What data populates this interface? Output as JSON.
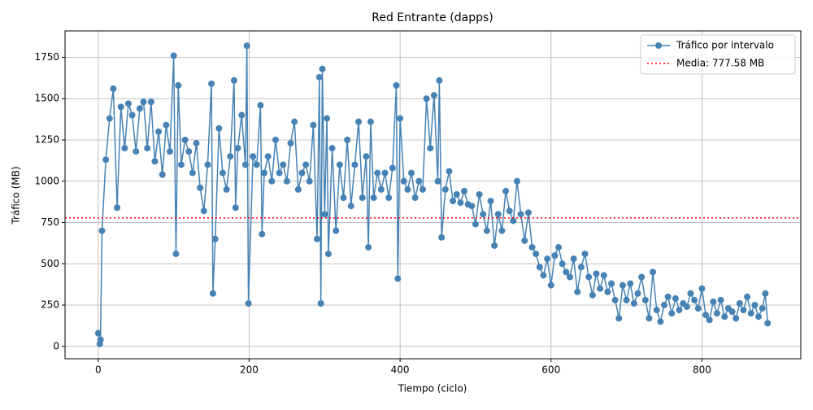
{
  "chart_data": {
    "type": "line",
    "title": "Red Entrante (dapps)",
    "x_label": "Tiempo (ciclo)",
    "y_label": "Tráfico (MB)",
    "xlim": [
      -44,
      931
    ],
    "ylim": [
      -75,
      1910
    ],
    "xticks": [
      0,
      200,
      400,
      600,
      800
    ],
    "yticks": [
      0,
      250,
      500,
      750,
      1000,
      1250,
      1500,
      1750
    ],
    "grid": true,
    "legend": "upper right",
    "x": [
      0,
      2,
      3,
      5,
      10,
      15,
      20,
      25,
      30,
      35,
      40,
      45,
      50,
      55,
      60,
      65,
      70,
      75,
      80,
      85,
      90,
      95,
      100,
      103,
      106,
      110,
      115,
      120,
      125,
      130,
      135,
      140,
      145,
      150,
      152,
      155,
      160,
      165,
      170,
      175,
      180,
      182,
      185,
      190,
      195,
      197,
      199,
      205,
      210,
      215,
      217,
      220,
      225,
      230,
      235,
      240,
      245,
      250,
      255,
      260,
      265,
      270,
      275,
      280,
      285,
      290,
      293,
      295,
      297,
      300,
      303,
      305,
      310,
      315,
      320,
      325,
      330,
      335,
      340,
      345,
      350,
      355,
      358,
      361,
      365,
      370,
      375,
      380,
      385,
      390,
      395,
      397,
      400,
      405,
      410,
      415,
      420,
      425,
      430,
      435,
      440,
      445,
      450,
      452,
      455,
      460,
      465,
      470,
      475,
      480,
      485,
      490,
      495,
      500,
      505,
      510,
      515,
      520,
      525,
      530,
      535,
      540,
      545,
      550,
      555,
      560,
      565,
      570,
      575,
      580,
      585,
      590,
      595,
      600,
      605,
      610,
      615,
      620,
      625,
      630,
      635,
      640,
      645,
      650,
      655,
      660,
      665,
      670,
      675,
      680,
      685,
      690,
      695,
      700,
      705,
      710,
      715,
      720,
      725,
      730,
      735,
      740,
      745,
      750,
      755,
      760,
      765,
      770,
      775,
      780,
      785,
      790,
      795,
      800,
      805,
      810,
      815,
      820,
      825,
      830,
      835,
      840,
      845,
      850,
      855,
      860,
      865,
      870,
      875,
      880,
      884,
      887
    ],
    "series": [
      {
        "name": "Tráfico por intervalo",
        "color": "#4682b4",
        "values": [
          80,
          15,
          40,
          700,
          1130,
          1380,
          1560,
          840,
          1450,
          1200,
          1470,
          1400,
          1180,
          1440,
          1480,
          1200,
          1480,
          1120,
          1300,
          1040,
          1340,
          1180,
          1760,
          560,
          1580,
          1100,
          1250,
          1180,
          1050,
          1230,
          960,
          820,
          1100,
          1590,
          320,
          650,
          1320,
          1050,
          950,
          1150,
          1610,
          840,
          1200,
          1400,
          1100,
          1820,
          260,
          1150,
          1100,
          1460,
          680,
          1050,
          1150,
          1000,
          1250,
          1050,
          1100,
          1000,
          1230,
          1360,
          950,
          1050,
          1100,
          1000,
          1340,
          650,
          1630,
          260,
          1680,
          800,
          1380,
          560,
          1200,
          700,
          1100,
          900,
          1250,
          850,
          1100,
          1360,
          900,
          1150,
          600,
          1360,
          900,
          1050,
          950,
          1050,
          900,
          1080,
          1580,
          410,
          1380,
          1000,
          950,
          1050,
          900,
          1000,
          950,
          1500,
          1200,
          1520,
          1000,
          1610,
          660,
          950,
          1060,
          880,
          920,
          870,
          940,
          860,
          850,
          740,
          920,
          800,
          700,
          880,
          610,
          800,
          700,
          940,
          820,
          760,
          1000,
          800,
          640,
          810,
          600,
          560,
          480,
          430,
          530,
          370,
          550,
          600,
          500,
          450,
          420,
          530,
          330,
          480,
          560,
          420,
          310,
          440,
          350,
          430,
          330,
          380,
          280,
          170,
          370,
          280,
          380,
          260,
          320,
          420,
          280,
          170,
          450,
          220,
          150,
          250,
          300,
          200,
          290,
          220,
          260,
          240,
          320,
          280,
          230,
          350,
          190,
          160,
          270,
          200,
          280,
          180,
          230,
          210,
          170,
          260,
          220,
          300,
          200,
          250,
          180,
          230,
          320,
          140
        ]
      }
    ],
    "mean": {
      "name": "Media: 777.58 MB",
      "value": 777.58,
      "color": "#ff0000"
    }
  }
}
